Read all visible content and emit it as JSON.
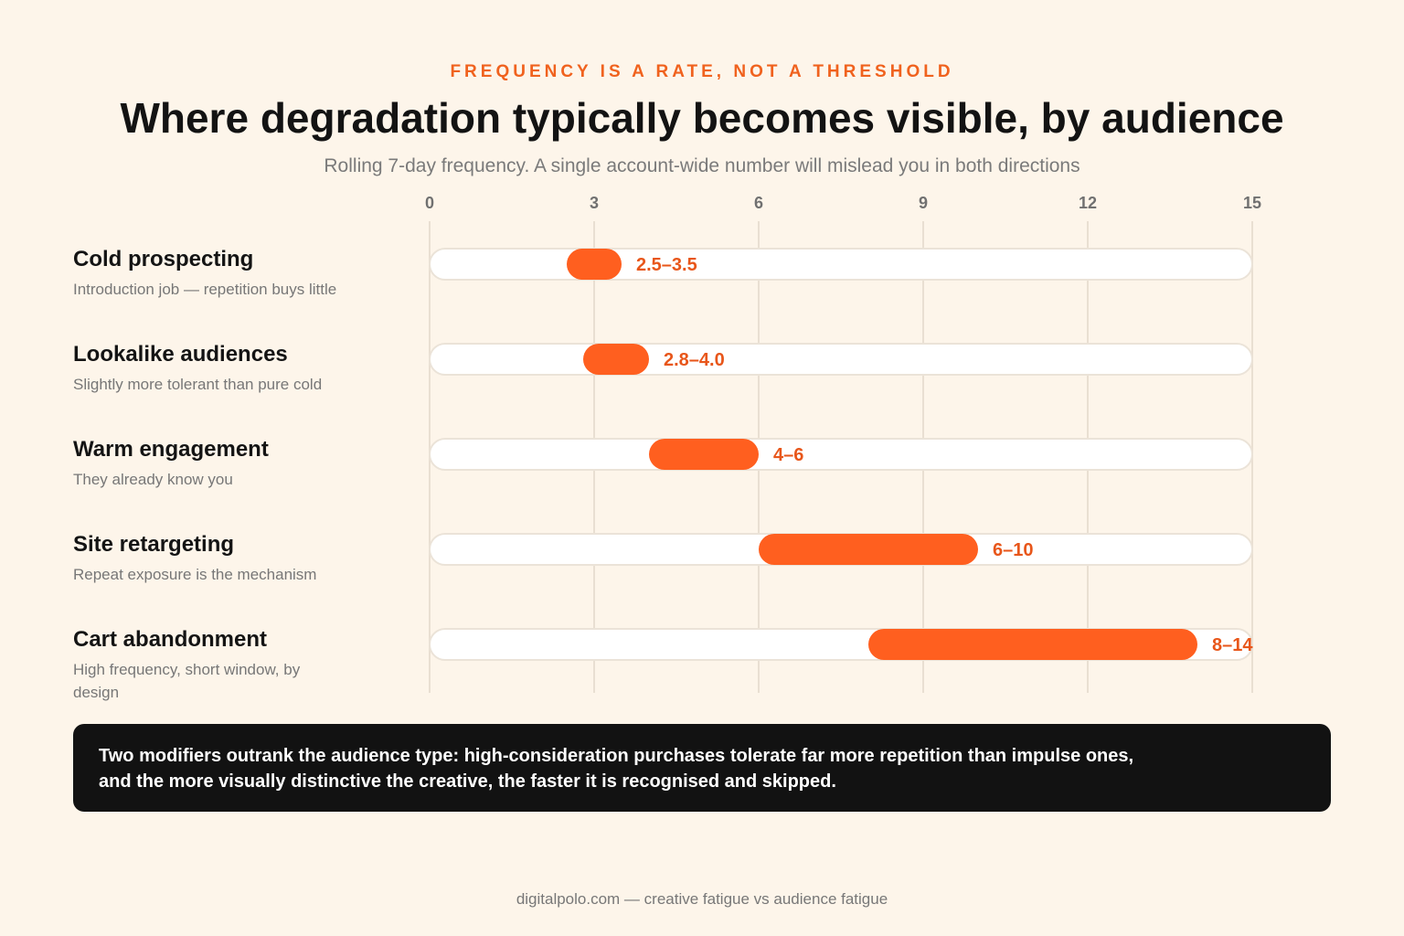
{
  "header": {
    "eyebrow": "FREQUENCY IS A RATE, NOT A THRESHOLD",
    "title": "Where degradation typically becomes visible, by audience",
    "subtitle": "Rolling 7-day frequency. A single account-wide number will mislead you in both directions"
  },
  "rows": [
    {
      "name": "Cold prospecting",
      "desc": "Introduction job — repetition buys little"
    },
    {
      "name": "Lookalike audiences",
      "desc": "Slightly more tolerant than pure cold"
    },
    {
      "name": "Warm engagement",
      "desc": "They already know you"
    },
    {
      "name": "Site retargeting",
      "desc": "Repeat exposure is the mechanism"
    },
    {
      "name": "Cart abandonment",
      "desc": "High frequency, short window, by design"
    }
  ],
  "chart_data": {
    "type": "bar",
    "orientation": "horizontal-range",
    "categories": [
      "Cold prospecting",
      "Lookalike audiences",
      "Warm engagement",
      "Site retargeting",
      "Cart abandonment"
    ],
    "ranges": [
      [
        2.5,
        3.5
      ],
      [
        2.8,
        4.0
      ],
      [
        4,
        6
      ],
      [
        6,
        10
      ],
      [
        8,
        14
      ]
    ],
    "range_labels": [
      "2.5–3.5",
      "2.8–4.0",
      "4–6",
      "6–10",
      "8–14"
    ],
    "xlim": [
      0,
      15
    ],
    "xticks": [
      0,
      3,
      6,
      9,
      12,
      15
    ],
    "tick_labels": [
      "0",
      "3",
      "6",
      "9",
      "12",
      "15"
    ],
    "grid": true,
    "colors": {
      "range": "#ff5f1f",
      "label": "#e8561a",
      "track": "#ffffff",
      "track_border": "#ebe3d8",
      "grid": "#e9dfd2",
      "tick": "#707070"
    }
  },
  "callout": {
    "line1": "Two modifiers outrank the audience type: high-consideration purchases tolerate far more repetition than impulse ones,",
    "line2": "and the more visually distinctive the creative, the faster it is recognised and skipped."
  },
  "footer": "digitalpolo.com — creative fatigue vs audience fatigue"
}
